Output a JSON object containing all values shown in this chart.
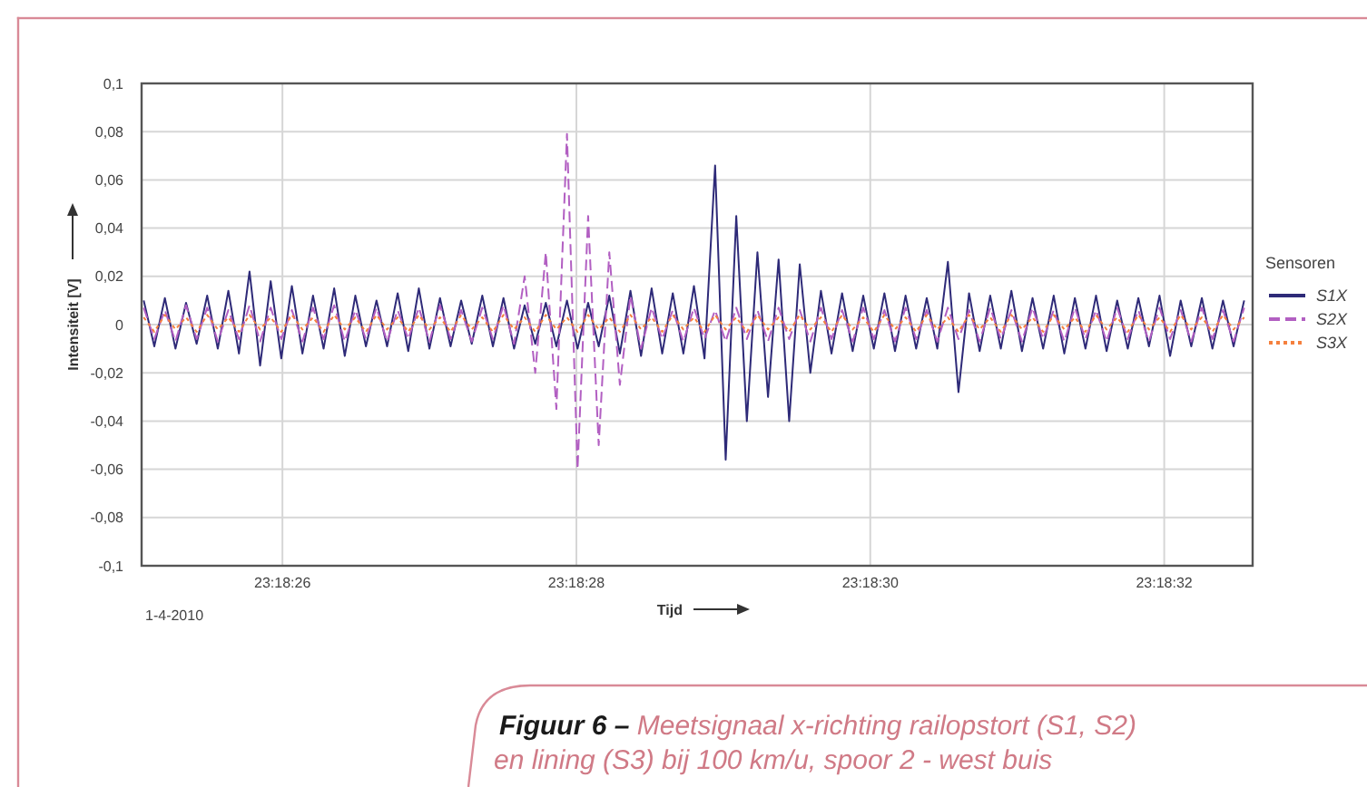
{
  "chart_data": {
    "type": "line",
    "xlabel": "Tijd",
    "ylabel": "Intensiteit [V]",
    "legend_title": "Sensoren",
    "legend": "right",
    "grid": true,
    "annotations": [
      "1-4-2010",
      "Figuur 6 –",
      "Meetsignaal x-richting railopstort (S1, S2) en lining (S3) bij 100 km/u, spoor 2 - west buis"
    ],
    "xlim": [
      23.306956,
      23.309056
    ],
    "xticks": [
      {
        "value": 23.3072222,
        "label": "23:18:26"
      },
      {
        "value": 23.3077778,
        "label": "23:18:28"
      },
      {
        "value": 23.3083333,
        "label": "23:18:30"
      },
      {
        "value": 23.3088889,
        "label": "23:18:32"
      }
    ],
    "ylim": [
      -0.1,
      0.1
    ],
    "yticks": [
      {
        "value": -0.1,
        "label": "-0,1"
      },
      {
        "value": -0.08,
        "label": "-0,08"
      },
      {
        "value": -0.06,
        "label": "-0,06"
      },
      {
        "value": -0.04,
        "label": "-0,04"
      },
      {
        "value": -0.02,
        "label": "-0,02"
      },
      0,
      {
        "value": 0.02,
        "label": "0,02"
      },
      {
        "value": 0.04,
        "label": "0,04"
      },
      {
        "value": 0.06,
        "label": "0,06"
      },
      {
        "value": 0.08,
        "label": "0,08"
      },
      {
        "value": 0.1,
        "label": "0,1"
      }
    ],
    "x": [
      23.30696,
      23.30698,
      23.307,
      23.30702,
      23.30704,
      23.30706,
      23.30708,
      23.3071,
      23.30712,
      23.30714,
      23.30716,
      23.30718,
      23.3072,
      23.30722,
      23.30724,
      23.30726,
      23.30728,
      23.3073,
      23.30732,
      23.30734,
      23.30736,
      23.30738,
      23.3074,
      23.30742,
      23.30744,
      23.30746,
      23.30748,
      23.3075,
      23.30752,
      23.30754,
      23.30756,
      23.30758,
      23.3076,
      23.30762,
      23.30764,
      23.30766,
      23.30768,
      23.3077,
      23.30772,
      23.30774,
      23.30776,
      23.30778,
      23.3078,
      23.30782,
      23.30784,
      23.30786,
      23.30788,
      23.3079,
      23.30792,
      23.30794,
      23.30796,
      23.30798,
      23.308,
      23.30802,
      23.30804,
      23.30806,
      23.30808,
      23.3081,
      23.30812,
      23.30814,
      23.30816,
      23.30818,
      23.3082,
      23.30822,
      23.30824,
      23.30826,
      23.30828,
      23.3083,
      23.30832,
      23.30834,
      23.30836,
      23.30838,
      23.3084,
      23.30842,
      23.30844,
      23.30846,
      23.30848,
      23.3085,
      23.30852,
      23.30854,
      23.30856,
      23.30858,
      23.3086,
      23.30862,
      23.30864,
      23.30866,
      23.30868,
      23.3087,
      23.30872,
      23.30874,
      23.30876,
      23.30878,
      23.3088,
      23.30882,
      23.30884,
      23.30886,
      23.30888,
      23.3089,
      23.30892,
      23.30894,
      23.30896,
      23.30898,
      23.309,
      23.30902,
      23.30904
    ],
    "series": [
      {
        "name": "S1X",
        "color": "#2e2a78",
        "line_style": "solid",
        "values": [
          0.01,
          -0.009,
          0.011,
          -0.01,
          0.009,
          -0.008,
          0.012,
          -0.01,
          0.014,
          -0.012,
          0.022,
          -0.017,
          0.018,
          -0.014,
          0.016,
          -0.012,
          0.012,
          -0.01,
          0.015,
          -0.013,
          0.012,
          -0.009,
          0.01,
          -0.009,
          0.013,
          -0.011,
          0.015,
          -0.01,
          0.011,
          -0.009,
          0.01,
          -0.008,
          0.012,
          -0.009,
          0.011,
          -0.01,
          0.008,
          -0.008,
          0.009,
          -0.009,
          0.01,
          -0.01,
          0.009,
          -0.009,
          0.012,
          -0.012,
          0.014,
          -0.013,
          0.015,
          -0.012,
          0.013,
          -0.012,
          0.016,
          -0.014,
          0.066,
          -0.056,
          0.045,
          -0.04,
          0.03,
          -0.03,
          0.027,
          -0.04,
          0.025,
          -0.02,
          0.014,
          -0.012,
          0.013,
          -0.011,
          0.012,
          -0.01,
          0.013,
          -0.011,
          0.012,
          -0.01,
          0.011,
          -0.01,
          0.026,
          -0.028,
          0.013,
          -0.011,
          0.012,
          -0.01,
          0.014,
          -0.011,
          0.011,
          -0.01,
          0.012,
          -0.012,
          0.011,
          -0.01,
          0.012,
          -0.011,
          0.01,
          -0.01,
          0.011,
          -0.009,
          0.012,
          -0.013,
          0.01,
          -0.009,
          0.011,
          -0.01,
          0.01,
          -0.009,
          0.01
        ]
      },
      {
        "name": "S2X",
        "color": "#b25fc2",
        "line_style": "dashed",
        "values": [
          0.007,
          -0.006,
          0.006,
          -0.007,
          0.008,
          -0.006,
          0.007,
          -0.007,
          0.006,
          -0.006,
          0.008,
          -0.007,
          0.007,
          -0.006,
          0.006,
          -0.007,
          0.007,
          -0.006,
          0.008,
          -0.007,
          0.006,
          -0.006,
          0.007,
          -0.007,
          0.006,
          -0.006,
          0.007,
          -0.007,
          0.008,
          -0.006,
          0.006,
          -0.007,
          0.007,
          -0.006,
          0.008,
          -0.008,
          0.02,
          -0.02,
          0.03,
          -0.035,
          0.079,
          -0.06,
          0.045,
          -0.05,
          0.03,
          -0.025,
          0.012,
          -0.01,
          0.007,
          -0.006,
          0.006,
          -0.007,
          0.007,
          -0.006,
          0.006,
          -0.007,
          0.007,
          -0.006,
          0.006,
          -0.007,
          0.007,
          -0.006,
          0.006,
          -0.007,
          0.007,
          -0.006,
          0.006,
          -0.007,
          0.007,
          -0.006,
          0.006,
          -0.007,
          0.007,
          -0.006,
          0.006,
          -0.007,
          0.007,
          -0.006,
          0.006,
          -0.007,
          0.007,
          -0.006,
          0.006,
          -0.007,
          0.007,
          -0.006,
          0.006,
          -0.007,
          0.007,
          -0.006,
          0.006,
          -0.007,
          0.007,
          -0.006,
          0.006,
          -0.007,
          0.007,
          -0.006,
          0.006,
          -0.007,
          0.007,
          -0.006,
          0.006,
          -0.007,
          0.007
        ]
      },
      {
        "name": "S3X",
        "color": "#f5803e",
        "line_style": "dotted",
        "values": [
          0.003,
          -0.003,
          0.004,
          -0.002,
          0.003,
          -0.003,
          0.004,
          -0.002,
          0.003,
          -0.003,
          0.004,
          -0.002,
          0.003,
          -0.003,
          0.004,
          -0.002,
          0.003,
          -0.003,
          0.004,
          -0.002,
          0.003,
          -0.003,
          0.004,
          -0.002,
          0.003,
          -0.003,
          0.004,
          -0.002,
          0.003,
          -0.003,
          0.004,
          -0.002,
          0.003,
          -0.003,
          0.004,
          -0.002,
          0.003,
          -0.003,
          0.004,
          -0.002,
          0.003,
          -0.003,
          0.004,
          -0.002,
          0.003,
          -0.003,
          0.004,
          -0.002,
          0.003,
          -0.003,
          0.004,
          -0.002,
          0.003,
          -0.003,
          0.004,
          -0.002,
          0.003,
          -0.003,
          0.004,
          -0.002,
          0.003,
          -0.003,
          0.004,
          -0.002,
          0.003,
          -0.003,
          0.004,
          -0.002,
          0.003,
          -0.003,
          0.004,
          -0.002,
          0.003,
          -0.003,
          0.004,
          -0.002,
          0.003,
          -0.003,
          0.004,
          -0.002,
          0.003,
          -0.003,
          0.004,
          -0.002,
          0.003,
          -0.003,
          0.004,
          -0.002,
          0.003,
          -0.003,
          0.004,
          -0.002,
          0.003,
          -0.003,
          0.004,
          -0.002,
          0.003,
          -0.003,
          0.004,
          -0.002,
          0.003,
          -0.003,
          0.004,
          -0.002,
          0.003
        ]
      }
    ]
  }
}
